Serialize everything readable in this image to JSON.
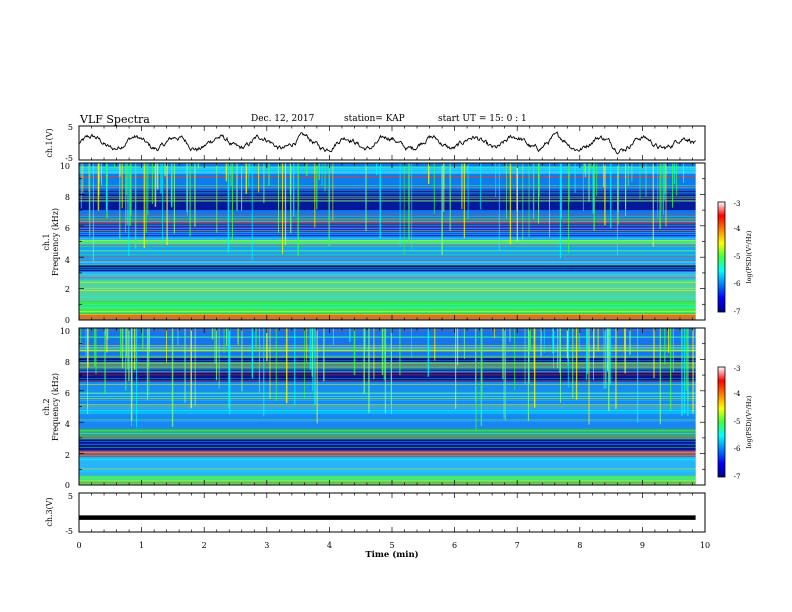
{
  "header": {
    "title": "VLF Spectra",
    "date": "Dec. 12, 2017",
    "station": "station= KAP",
    "start_time": "start  UT =   15: 0  : 1"
  },
  "chart_data": [
    {
      "type": "line",
      "panel": "ch1-waveform",
      "ylabel": "ch.1(V)",
      "ylim": [
        -5,
        5
      ],
      "yticks": [
        "5",
        "-5"
      ],
      "xlim": [
        0,
        10
      ],
      "note_values": "waveform fluctuates roughly between -2 and 2 V across 0-9.85 min"
    },
    {
      "type": "heatmap",
      "panel": "ch1-spectrogram",
      "ylabel": "ch.1\nFrequency (kHz)",
      "ylabel_line1": "ch.1",
      "ylabel_line2": "Frequency (kHz)",
      "ylim": [
        0,
        10
      ],
      "yticks": [
        "0",
        "2",
        "4",
        "6",
        "8",
        "10"
      ],
      "xlim": [
        0,
        10
      ],
      "colorbar": {
        "label": "log(PSD)(V²/Hz)",
        "range": [
          -7,
          -3
        ],
        "ticks": [
          "-3",
          "-4",
          "-5",
          "-6",
          "-7"
        ],
        "colormap": "jet"
      }
    },
    {
      "type": "heatmap",
      "panel": "ch2-spectrogram",
      "ylabel": "ch.2\nFrequency (kHz)",
      "ylabel_line1": "ch.2",
      "ylabel_line2": "Frequency (kHz)",
      "ylim": [
        0,
        10
      ],
      "yticks": [
        "0",
        "2",
        "4",
        "6",
        "8",
        "10"
      ],
      "xlim": [
        0,
        10
      ],
      "colorbar": {
        "label": "log(PSD)(V²/Hz)",
        "range": [
          -7,
          -3
        ],
        "ticks": [
          "-3",
          "-4",
          "-5",
          "-6",
          "-7"
        ],
        "colormap": "jet"
      }
    },
    {
      "type": "line",
      "panel": "ch3-waveform",
      "ylabel": "ch.3(V)",
      "ylim": [
        -5,
        5
      ],
      "yticks": [
        "5",
        "-5"
      ],
      "xlim": [
        0,
        10
      ],
      "x": [
        0,
        9.85
      ],
      "y": [
        -1.3,
        -1.3
      ],
      "xlabel": "Time  (min)",
      "xticks": [
        "0",
        "1",
        "2",
        "3",
        "4",
        "5",
        "6",
        "7",
        "8",
        "9",
        "10"
      ]
    }
  ],
  "colors": {
    "line": "#000000",
    "deep_blue": "#00008f",
    "cyan": "#00d0ff",
    "green": "#40ff40",
    "yellow": "#ffff00",
    "red": "#ff0000"
  }
}
